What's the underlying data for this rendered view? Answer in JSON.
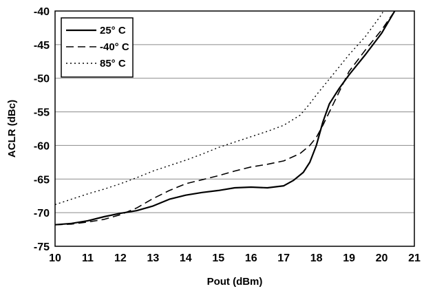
{
  "chart_data": {
    "type": "line",
    "xlabel": "Pout (dBm)",
    "ylabel": "ACLR (dBc)",
    "xlim": [
      10,
      21
    ],
    "ylim": [
      -75,
      -40
    ],
    "x_ticks": [
      "10",
      "11",
      "12",
      "13",
      "14",
      "15",
      "16",
      "17",
      "18",
      "19",
      "20",
      "21"
    ],
    "y_ticks": [
      "-40",
      "-45",
      "-50",
      "-55",
      "-60",
      "-65",
      "-70",
      "-75"
    ],
    "grid": "horizontal",
    "legend_position": "top-left",
    "series": [
      {
        "name": "25° C",
        "style": "solid",
        "color": "#000000",
        "points": [
          [
            10,
            -71.8
          ],
          [
            10.5,
            -71.6
          ],
          [
            11,
            -71.2
          ],
          [
            11.5,
            -70.6
          ],
          [
            12,
            -70.1
          ],
          [
            12.5,
            -69.7
          ],
          [
            13,
            -69.0
          ],
          [
            13.5,
            -68.0
          ],
          [
            14,
            -67.4
          ],
          [
            14.5,
            -67.0
          ],
          [
            15,
            -66.7
          ],
          [
            15.5,
            -66.3
          ],
          [
            16,
            -66.2
          ],
          [
            16.5,
            -66.3
          ],
          [
            17,
            -66.0
          ],
          [
            17.3,
            -65.2
          ],
          [
            17.6,
            -64.0
          ],
          [
            17.8,
            -62.5
          ],
          [
            18,
            -60.0
          ],
          [
            18.2,
            -56.5
          ],
          [
            18.4,
            -53.8
          ],
          [
            18.7,
            -51.5
          ],
          [
            19,
            -49.5
          ],
          [
            19.5,
            -46.5
          ],
          [
            20,
            -43.3
          ],
          [
            20.4,
            -40.0
          ]
        ]
      },
      {
        "name": "-40° C",
        "style": "dashed",
        "color": "#000000",
        "points": [
          [
            10,
            -71.8
          ],
          [
            10.5,
            -71.7
          ],
          [
            11,
            -71.4
          ],
          [
            11.5,
            -71.0
          ],
          [
            12,
            -70.3
          ],
          [
            12.5,
            -69.3
          ],
          [
            13,
            -67.9
          ],
          [
            13.5,
            -66.7
          ],
          [
            14,
            -65.7
          ],
          [
            14.5,
            -65.1
          ],
          [
            15,
            -64.5
          ],
          [
            15.5,
            -63.8
          ],
          [
            16,
            -63.2
          ],
          [
            16.5,
            -62.8
          ],
          [
            17,
            -62.3
          ],
          [
            17.5,
            -61.2
          ],
          [
            17.8,
            -60.0
          ],
          [
            18,
            -58.8
          ],
          [
            18.2,
            -57.0
          ],
          [
            18.5,
            -54.0
          ],
          [
            19,
            -49.0
          ],
          [
            19.5,
            -45.8
          ],
          [
            20,
            -42.8
          ],
          [
            20.4,
            -40.0
          ]
        ]
      },
      {
        "name": "85° C",
        "style": "dotted",
        "color": "#000000",
        "points": [
          [
            10,
            -68.8
          ],
          [
            10.5,
            -68.0
          ],
          [
            11,
            -67.2
          ],
          [
            11.5,
            -66.5
          ],
          [
            12,
            -65.7
          ],
          [
            12.5,
            -64.8
          ],
          [
            13,
            -63.8
          ],
          [
            13.5,
            -63.0
          ],
          [
            14,
            -62.2
          ],
          [
            14.5,
            -61.3
          ],
          [
            15,
            -60.3
          ],
          [
            15.5,
            -59.5
          ],
          [
            16,
            -58.7
          ],
          [
            16.5,
            -57.9
          ],
          [
            17,
            -57.0
          ],
          [
            17.5,
            -55.5
          ],
          [
            17.8,
            -53.8
          ],
          [
            18,
            -52.5
          ],
          [
            18.5,
            -49.5
          ],
          [
            19,
            -46.5
          ],
          [
            19.5,
            -43.8
          ],
          [
            20,
            -40.5
          ],
          [
            20.05,
            -40.0
          ]
        ]
      }
    ]
  }
}
